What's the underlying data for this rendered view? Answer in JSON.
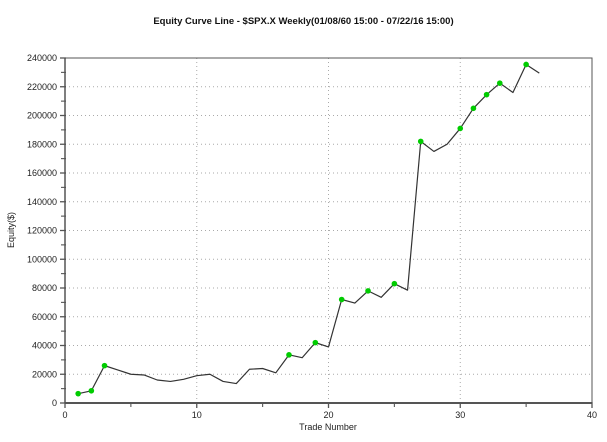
{
  "page": {
    "background_color": "#ffffff"
  },
  "chart_data": {
    "type": "line",
    "title": "Equity Curve Line - $SPX.X Weekly(01/08/60 15:00 - 07/22/16 15:00)",
    "xlabel": "Trade Number",
    "ylabel": "Equity($)",
    "xlim": [
      0,
      40
    ],
    "ylim": [
      0,
      240000
    ],
    "xticks": [
      0,
      10,
      20,
      30,
      40
    ],
    "xminorticks": [
      5,
      15,
      25,
      35
    ],
    "yticks": [
      0,
      20000,
      40000,
      60000,
      80000,
      100000,
      120000,
      140000,
      160000,
      180000,
      200000,
      220000,
      240000
    ],
    "yminorticks": [
      10000,
      30000,
      50000,
      70000,
      90000,
      110000,
      130000,
      150000,
      170000,
      190000,
      210000,
      230000
    ],
    "grid": "dotted gridlines at interior major ticks (x: 10,20,30; y: 20000-220000)",
    "legend": "none",
    "x": [
      1,
      2,
      3,
      4,
      5,
      6,
      7,
      8,
      9,
      10,
      11,
      12,
      13,
      14,
      15,
      16,
      17,
      18,
      19,
      20,
      21,
      22,
      23,
      24,
      25,
      26,
      27,
      28,
      29,
      30,
      31,
      32,
      33,
      34,
      35,
      36
    ],
    "equity": [
      6500,
      8500,
      26000,
      23000,
      20000,
      19500,
      16000,
      15000,
      16500,
      19000,
      20000,
      15000,
      13500,
      23500,
      24000,
      21000,
      33500,
      31500,
      42000,
      39000,
      72000,
      69500,
      78000,
      73500,
      83000,
      78500,
      182000,
      175000,
      180000,
      191000,
      205000,
      214500,
      222500,
      216000,
      235500,
      229500
    ],
    "new_high_marker_trades": [
      1,
      2,
      3,
      17,
      19,
      21,
      23,
      25,
      27,
      30,
      31,
      32,
      33,
      35
    ],
    "line_color": "#333333",
    "marker_color": "#00cc00",
    "grid_color": "#aaaaaa",
    "axis_color": "#555555",
    "tick_label_color": "#222222"
  }
}
